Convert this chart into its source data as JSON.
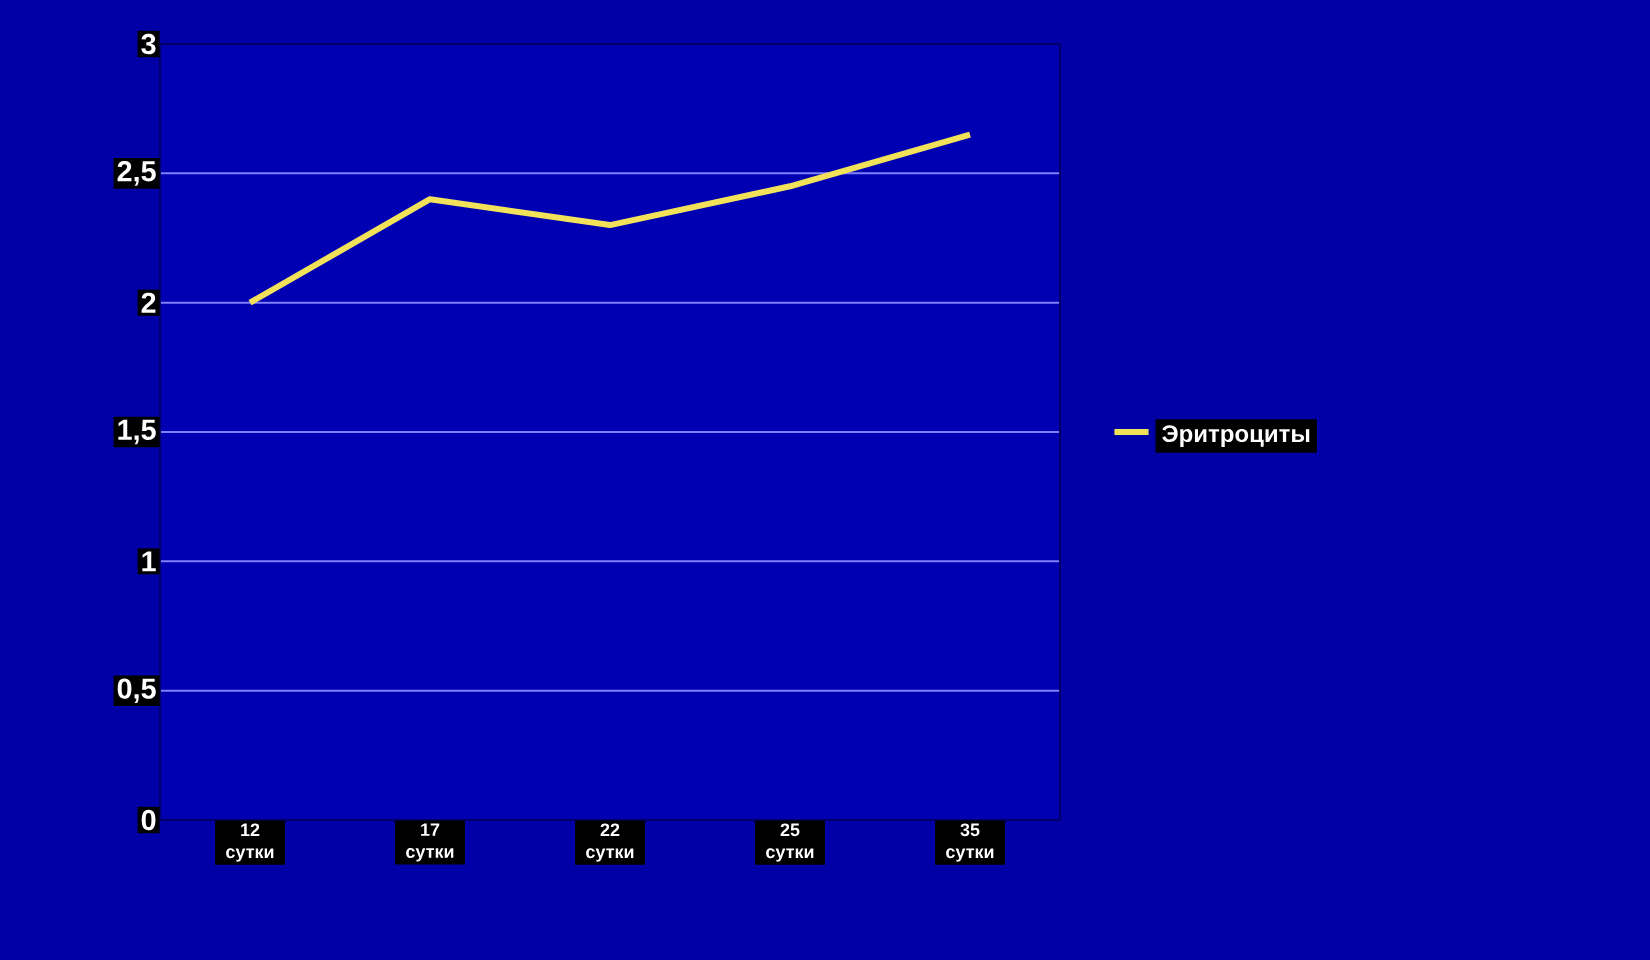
{
  "chart_data": {
    "type": "line",
    "categories": [
      "12 сутки",
      "17 сутки",
      "22 сутки",
      "25 сутки",
      "35 сутки"
    ],
    "series": [
      {
        "name": "Эритроциты",
        "color": "#f2e25a",
        "values": [
          2.0,
          2.4,
          2.3,
          2.45,
          2.65
        ]
      }
    ],
    "ylim": [
      0,
      3
    ],
    "yticks": [
      0,
      {
        "value": 0.5,
        "label": "0,5"
      },
      1,
      {
        "value": 1.5,
        "label": "1,5"
      },
      2,
      {
        "value": 2.5,
        "label": "2,5"
      },
      3
    ],
    "grid": "y",
    "legend": "right",
    "marker": "none",
    "line_style": "solid"
  }
}
